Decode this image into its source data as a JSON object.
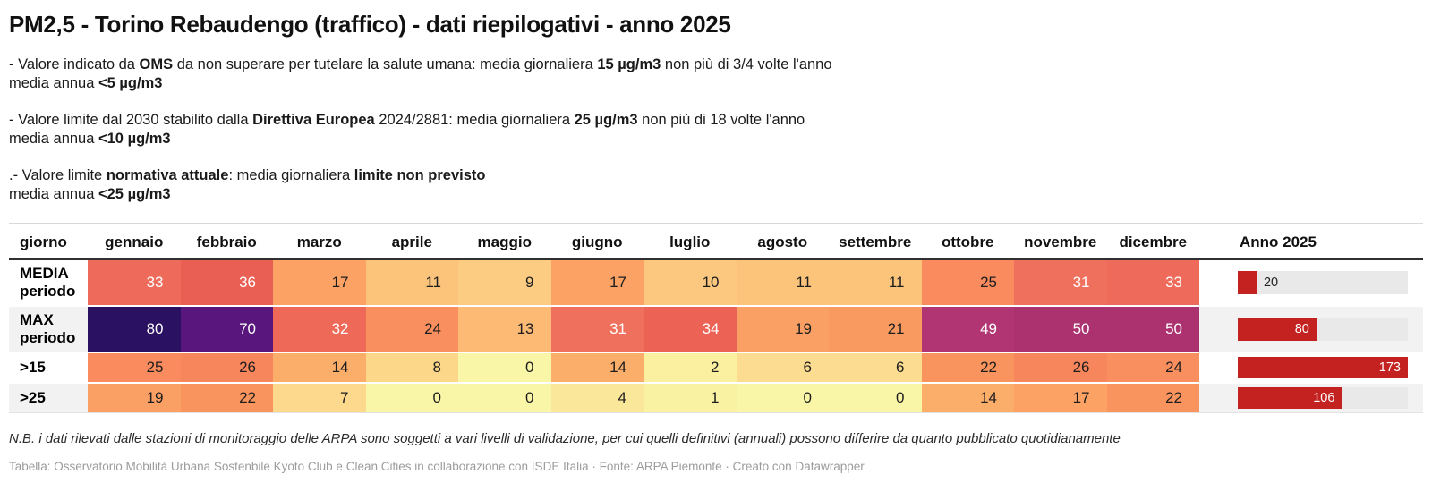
{
  "title": "PM2,5 - Torino Rebaudengo (traffico) - dati riepilogativi - anno 2025",
  "description": {
    "paragraphs": [
      {
        "lines": [
          [
            {
              "t": "- Valore indicato da "
            },
            {
              "t": "OMS",
              "b": true
            },
            {
              "t": " da non superare per tutelare la salute umana: media giornaliera "
            },
            {
              "t": "15 µg/m3",
              "b": true
            },
            {
              "t": " non più di 3/4 volte l'anno"
            }
          ],
          [
            {
              "t": "media annua "
            },
            {
              "t": "<5 µg/m3",
              "b": true
            }
          ]
        ]
      },
      {
        "lines": [
          [
            {
              "t": "- Valore limite dal 2030 stabilito dalla "
            },
            {
              "t": "Direttiva Europea",
              "b": true
            },
            {
              "t": " 2024/2881: media giornaliera "
            },
            {
              "t": "25 µg/m3",
              "b": true
            },
            {
              "t": " non più di 18 volte l'anno"
            }
          ],
          [
            {
              "t": "media annua "
            },
            {
              "t": "<10 µg/m3",
              "b": true
            }
          ]
        ]
      },
      {
        "lines": [
          [
            {
              "t": ".- Valore limite "
            },
            {
              "t": "normativa attuale",
              "b": true
            },
            {
              "t": ": media giornaliera "
            },
            {
              "t": "limite non previsto",
              "b": true
            }
          ],
          [
            {
              "t": "media annua "
            },
            {
              "t": "<25 µg/m3",
              "b": true
            }
          ]
        ]
      }
    ]
  },
  "table": {
    "columns": [
      "giorno",
      "gennaio",
      "febbraio",
      "marzo",
      "aprile",
      "maggio",
      "giugno",
      "luglio",
      "agosto",
      "settembre",
      "ottobre",
      "novembre",
      "dicembre",
      "Anno 2025"
    ],
    "bar_max": 173,
    "bar_color": "#c42121",
    "bar_track_color": "#e9e9e9",
    "white_text_min": 31,
    "text_dark": "#1d1d1d",
    "text_light": "#ffffff",
    "zebra_color": "#f2f2f2",
    "value_colors": {
      "0": "#f9f6a8",
      "1": "#faf2a3",
      "2": "#fbefa0",
      "4": "#fbe79a",
      "6": "#fcdc90",
      "7": "#fcd98d",
      "8": "#fcd689",
      "9": "#fccc83",
      "10": "#fcc87f",
      "11": "#fcc47b",
      "13": "#fcba74",
      "14": "#fbad6a",
      "17": "#fba264",
      "19": "#faa064",
      "21": "#f99b60",
      "22": "#f9945e",
      "24": "#f98f5e",
      "25": "#f98b5e",
      "26": "#f8865c",
      "31": "#ef705c",
      "32": "#ee6958",
      "33": "#ee6b5b",
      "34": "#ec6355",
      "36": "#ea5f53",
      "49": "#b03572",
      "50": "#ac316f",
      "70": "#59177d",
      "80": "#2b1161"
    },
    "rows": [
      {
        "label": "MEDIA periodo",
        "tall": true,
        "zebra": false,
        "values": [
          33,
          36,
          17,
          11,
          9,
          17,
          10,
          11,
          11,
          25,
          31,
          33
        ],
        "bar": {
          "value": 20,
          "label_inside": false
        }
      },
      {
        "label": "MAX periodo",
        "tall": true,
        "zebra": true,
        "values": [
          80,
          70,
          32,
          24,
          13,
          31,
          34,
          19,
          21,
          49,
          50,
          50
        ],
        "bar": {
          "value": 80,
          "label_inside": true
        }
      },
      {
        "label": ">15",
        "tall": false,
        "zebra": false,
        "values": [
          25,
          26,
          14,
          8,
          0,
          14,
          2,
          6,
          6,
          22,
          26,
          24
        ],
        "bar": {
          "value": 173,
          "label_inside": true
        }
      },
      {
        "label": ">25",
        "tall": false,
        "zebra": true,
        "values": [
          19,
          22,
          7,
          0,
          0,
          4,
          1,
          0,
          0,
          14,
          17,
          22
        ],
        "bar": {
          "value": 106,
          "label_inside": true
        }
      }
    ]
  },
  "chart_data": {
    "type": "table",
    "title": "PM2,5 - Torino Rebaudengo (traffico) - dati riepilogativi - anno 2025",
    "categories": [
      "gennaio",
      "febbraio",
      "marzo",
      "aprile",
      "maggio",
      "giugno",
      "luglio",
      "agosto",
      "settembre",
      "ottobre",
      "novembre",
      "dicembre"
    ],
    "series": [
      {
        "name": "MEDIA periodo",
        "values": [
          33,
          36,
          17,
          11,
          9,
          17,
          10,
          11,
          11,
          25,
          31,
          33
        ],
        "anno_2025": 20
      },
      {
        "name": "MAX periodo",
        "values": [
          80,
          70,
          32,
          24,
          13,
          31,
          34,
          19,
          21,
          49,
          50,
          50
        ],
        "anno_2025": 80
      },
      {
        "name": ">15",
        "values": [
          25,
          26,
          14,
          8,
          0,
          14,
          2,
          6,
          6,
          22,
          26,
          24
        ],
        "anno_2025": 173
      },
      {
        "name": ">25",
        "values": [
          19,
          22,
          7,
          0,
          0,
          4,
          1,
          0,
          0,
          14,
          17,
          22
        ],
        "anno_2025": 106
      }
    ],
    "bar_column": {
      "label": "Anno 2025",
      "max": 173,
      "color": "#c42121"
    },
    "heatmap": true,
    "legend_position": "none",
    "grid": false
  },
  "footer": {
    "note": "N.B. i dati rilevati dalle stazioni di monitoraggio delle ARPA sono soggetti a vari livelli di validazione, per cui quelli definitivi (annuali) possono differire da quanto pubblicato quotidianamente",
    "attribution": "Tabella: Osservatorio Mobilità Urbana Sostenbile Kyoto Club e Clean Cities in collaborazione con ISDE Italia · Fonte: ARPA Piemonte · Creato con Datawrapper"
  }
}
